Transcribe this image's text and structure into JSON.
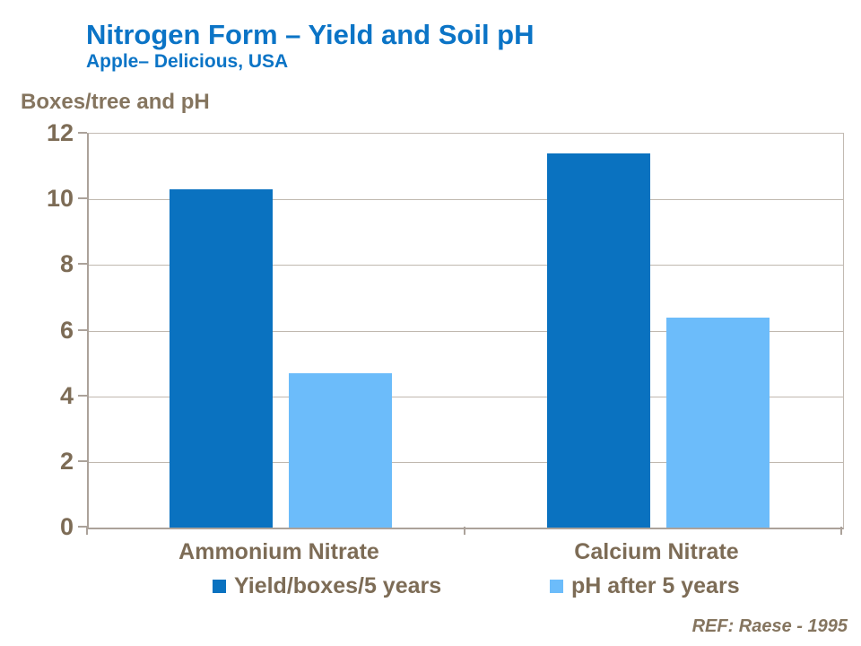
{
  "header": {
    "title": "Nitrogen Form – Yield and Soil pH",
    "subtitle": "Apple– Delicious, USA"
  },
  "y_axis_title": "Boxes/tree and pH",
  "footer": {
    "reference": "REF: Raese - 1995"
  },
  "colors": {
    "title_blue": "#0b74c6",
    "yield_bar_blue": "#0a72c0",
    "ph_bar_light_blue": "#6cbcfa",
    "axis_text_brown": "#7d6c56",
    "label_brown": "#85755f",
    "axis_line": "#aba29a",
    "plot_border_light": "#c2bab2",
    "gridline": "#c0b8af",
    "background": "#ffffff"
  },
  "chart_data": {
    "type": "bar",
    "title": "Nitrogen Form – Yield and Soil pH",
    "subtitle": "Apple– Delicious, USA",
    "ylabel": "Boxes/tree and pH",
    "xlabel": "",
    "categories": [
      "Ammonium Nitrate",
      "Calcium Nitrate"
    ],
    "series": [
      {
        "name": "Yield/boxes/5 years",
        "color": "#0a72c0",
        "values": [
          10.3,
          11.4
        ]
      },
      {
        "name": "pH after 5 years",
        "color": "#6cbcfa",
        "values": [
          4.7,
          6.4
        ]
      }
    ],
    "ylim": [
      0,
      12
    ],
    "y_ticks": [
      0,
      2,
      4,
      6,
      8,
      10,
      12
    ],
    "grid": true,
    "legend_position": "bottom"
  }
}
